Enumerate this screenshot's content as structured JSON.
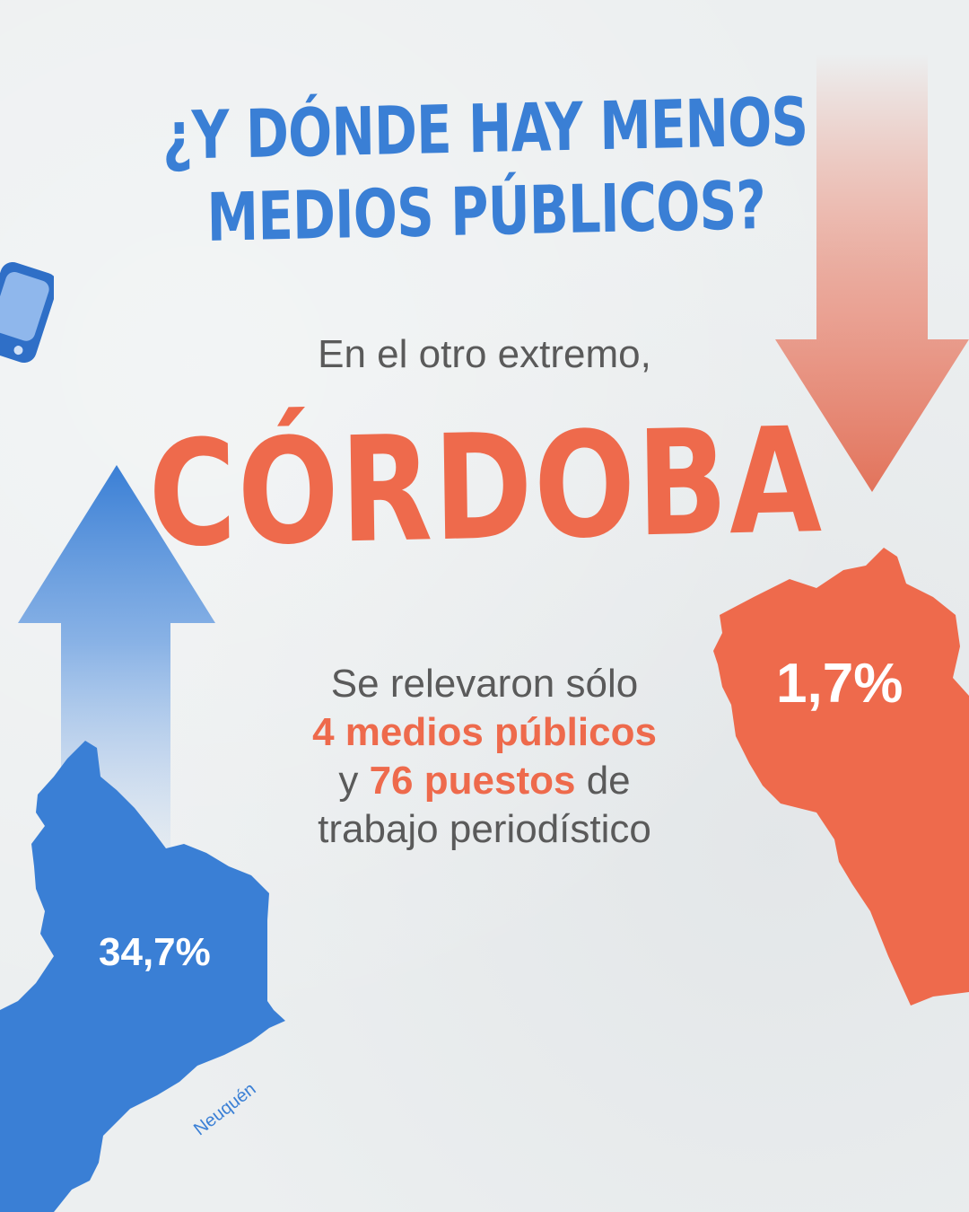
{
  "title": {
    "line1": "¿Y DÓNDE HAY MENOS",
    "line2": "MEDIOS PÚBLICOS?"
  },
  "intro": "En el otro extremo,",
  "province": "CÓRDOBA",
  "body": {
    "line1": "Se relevaron sólo",
    "highlight1": "4 medios públicos",
    "prefix2": "y",
    "highlight2": "76 puestos",
    "suffix2": "de",
    "line4": "trabajo periodístico"
  },
  "cordoba_map": {
    "percent": "1,7%"
  },
  "neuquen_map": {
    "percent": "34,7%",
    "label": "Neuquén"
  },
  "icons": {
    "tv": "tv-icon",
    "down_arrow": "arrow-down-icon",
    "up_arrow": "arrow-up-icon"
  },
  "colors": {
    "blue": "#3a7fd5",
    "orange": "#ee6a4c",
    "text": "#5a5a5a",
    "background": "#eceff0"
  }
}
